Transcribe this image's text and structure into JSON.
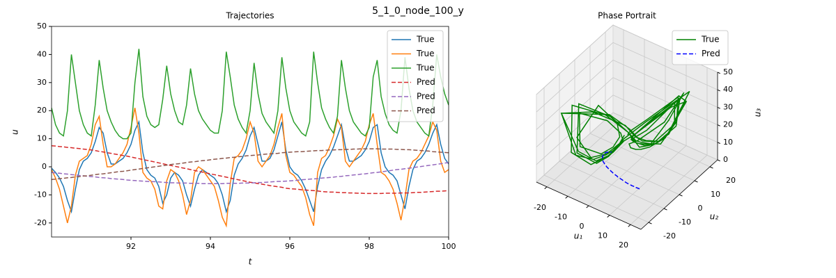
{
  "title": "5_1_0_node_100_y",
  "chart_data": [
    {
      "type": "line",
      "title": "Trajectories",
      "xlabel": "t",
      "ylabel": "u",
      "xlim": [
        90,
        100
      ],
      "ylim": [
        -25,
        50
      ],
      "xticks": [
        92,
        94,
        96,
        98,
        100
      ],
      "yticks": [
        -20,
        -10,
        0,
        10,
        20,
        30,
        40,
        50
      ],
      "legend": "upper right",
      "x": [
        90,
        90.1,
        90.2,
        90.3,
        90.4,
        90.5,
        90.6,
        90.7,
        90.8,
        90.9,
        91,
        91.1,
        91.2,
        91.3,
        91.4,
        91.5,
        91.6,
        91.7,
        91.8,
        91.9,
        92,
        92.1,
        92.2,
        92.3,
        92.4,
        92.5,
        92.6,
        92.7,
        92.8,
        92.9,
        93,
        93.1,
        93.2,
        93.3,
        93.4,
        93.5,
        93.6,
        93.7,
        93.8,
        93.9,
        94,
        94.1,
        94.2,
        94.3,
        94.4,
        94.5,
        94.6,
        94.7,
        94.8,
        94.9,
        95,
        95.1,
        95.2,
        95.3,
        95.4,
        95.5,
        95.6,
        95.7,
        95.8,
        95.9,
        96,
        96.1,
        96.2,
        96.3,
        96.4,
        96.5,
        96.6,
        96.7,
        96.8,
        96.9,
        97,
        97.1,
        97.2,
        97.3,
        97.4,
        97.5,
        97.6,
        97.7,
        97.8,
        97.9,
        98,
        98.1,
        98.2,
        98.3,
        98.4,
        98.5,
        98.6,
        98.7,
        98.8,
        98.9,
        99,
        99.1,
        99.2,
        99.3,
        99.4,
        99.5,
        99.6,
        99.7,
        99.8,
        99.9,
        100
      ],
      "series": [
        {
          "name": "True",
          "color": "#1f77b4",
          "linestyle": "solid",
          "values": [
            -0.5,
            -2,
            -4,
            -7,
            -12,
            -16,
            -8,
            -1,
            2,
            3,
            5,
            9,
            14,
            12,
            5,
            1,
            1,
            2,
            3,
            5,
            8,
            13,
            16,
            5,
            -1,
            -3,
            -4,
            -7,
            -13,
            -10,
            -4,
            -2,
            -3,
            -5,
            -10,
            -14,
            -8,
            -3,
            -1,
            -2,
            -3,
            -4,
            -6,
            -10,
            -16,
            -12,
            -3,
            1,
            3,
            6,
            11,
            14,
            8,
            2,
            2,
            3,
            6,
            11,
            16,
            6,
            0,
            -2,
            -3,
            -5,
            -8,
            -12,
            -16,
            -7,
            -1,
            2,
            4,
            7,
            11,
            15,
            7,
            2,
            2,
            3,
            4,
            6,
            9,
            14,
            15,
            5,
            0,
            -2,
            -3,
            -5,
            -10,
            -15,
            -7,
            -1,
            2,
            3,
            5,
            8,
            12,
            15,
            8,
            3,
            1
          ]
        },
        {
          "name": "True",
          "color": "#ff7f0e",
          "linestyle": "solid",
          "values": [
            -1,
            -4,
            -8,
            -14,
            -20,
            -14,
            -3,
            2,
            3,
            4,
            8,
            15,
            18,
            8,
            0,
            0,
            1,
            3,
            5,
            8,
            14,
            21,
            12,
            -2,
            -4,
            -5,
            -8,
            -14,
            -15,
            -5,
            -1,
            -2,
            -5,
            -10,
            -17,
            -12,
            -2,
            0,
            -1,
            -3,
            -5,
            -7,
            -12,
            -18,
            -21,
            -6,
            3,
            4,
            6,
            10,
            16,
            12,
            2,
            0,
            2,
            4,
            8,
            14,
            19,
            4,
            -2,
            -3,
            -5,
            -7,
            -11,
            -17,
            -21,
            -2,
            3,
            4,
            7,
            11,
            17,
            14,
            2,
            0,
            2,
            4,
            6,
            9,
            15,
            19,
            8,
            -2,
            -3,
            -5,
            -8,
            -13,
            -19,
            -11,
            -1,
            2,
            3,
            5,
            8,
            11,
            16,
            13,
            2,
            -2,
            -1
          ]
        },
        {
          "name": "True",
          "color": "#2ca02c",
          "linestyle": "solid",
          "values": [
            21,
            15,
            12,
            11,
            20,
            40,
            30,
            20,
            15,
            12,
            11,
            22,
            38,
            28,
            20,
            16,
            13,
            11,
            10,
            10,
            12,
            30,
            42,
            25,
            18,
            15,
            14,
            15,
            24,
            36,
            26,
            20,
            16,
            15,
            22,
            35,
            26,
            20,
            17,
            15,
            13,
            12,
            12,
            20,
            41,
            32,
            22,
            17,
            14,
            12,
            20,
            37,
            26,
            19,
            16,
            14,
            12,
            20,
            39,
            28,
            20,
            16,
            14,
            12,
            11,
            16,
            41,
            30,
            21,
            17,
            14,
            12,
            18,
            38,
            28,
            20,
            16,
            14,
            12,
            11,
            14,
            32,
            38,
            25,
            19,
            15,
            13,
            12,
            20,
            39,
            28,
            20,
            16,
            14,
            12,
            11,
            22,
            40,
            32,
            26,
            22
          ]
        },
        {
          "name": "Pred",
          "color": "#d62728",
          "linestyle": "dashed",
          "values": [
            7.5,
            7.4,
            7.2,
            7.1,
            6.9,
            6.8,
            6.6,
            6.5,
            6.3,
            6.2,
            6,
            5.8,
            5.5,
            5.3,
            5,
            4.8,
            4.5,
            4.3,
            4,
            3.8,
            3.5,
            3.2,
            2.9,
            2.6,
            2.3,
            2,
            1.7,
            1.4,
            1.1,
            0.8,
            0.5,
            0.2,
            -0.1,
            -0.4,
            -0.7,
            -1,
            -1.3,
            -1.6,
            -1.9,
            -2.2,
            -2.5,
            -2.8,
            -3.1,
            -3.4,
            -3.7,
            -4,
            -4.3,
            -4.6,
            -4.9,
            -5.2,
            -5.5,
            -5.7,
            -6,
            -6.2,
            -6.4,
            -6.7,
            -6.9,
            -7.1,
            -7.3,
            -7.6,
            -7.8,
            -7.9,
            -8,
            -8.2,
            -8.3,
            -8.4,
            -8.5,
            -8.6,
            -8.8,
            -8.9,
            -9,
            -9,
            -9.1,
            -9.2,
            -9.2,
            -9.3,
            -9.3,
            -9.4,
            -9.4,
            -9.5,
            -9.5,
            -9.5,
            -9.5,
            -9.5,
            -9.4,
            -9.4,
            -9.4,
            -9.4,
            -9.3,
            -9.3,
            -9.3,
            -9.2,
            -9.1,
            -9.1,
            -9,
            -8.9,
            -8.8,
            -8.7,
            -8.7,
            -8.6,
            -8.5
          ]
        },
        {
          "name": "Pred",
          "color": "#9467bd",
          "linestyle": "dashed",
          "values": [
            -2,
            -2.2,
            -2.3,
            -2.5,
            -2.6,
            -2.8,
            -2.9,
            -3.1,
            -3.2,
            -3.4,
            -3.5,
            -3.6,
            -3.8,
            -3.9,
            -4,
            -4.2,
            -4.3,
            -4.4,
            -4.5,
            -4.7,
            -4.8,
            -4.9,
            -5,
            -5.1,
            -5.2,
            -5.3,
            -5.3,
            -5.4,
            -5.5,
            -5.6,
            -5.7,
            -5.7,
            -5.8,
            -5.8,
            -5.8,
            -5.9,
            -5.9,
            -5.9,
            -6,
            -6,
            -6,
            -6,
            -6,
            -6,
            -5.9,
            -5.9,
            -5.9,
            -5.9,
            -5.8,
            -5.8,
            -5.8,
            -5.7,
            -5.6,
            -5.6,
            -5.5,
            -5.4,
            -5.3,
            -5.2,
            -5.2,
            -5.1,
            -5,
            -4.9,
            -4.8,
            -4.6,
            -4.5,
            -4.4,
            -4.3,
            -4.2,
            -4,
            -3.9,
            -3.8,
            -3.7,
            -3.5,
            -3.4,
            -3.2,
            -3.1,
            -2.9,
            -2.8,
            -2.6,
            -2.5,
            -2.3,
            -2.1,
            -2,
            -1.8,
            -1.6,
            -1.4,
            -1.2,
            -1,
            -0.9,
            -0.7,
            -0.5,
            -0.3,
            -0.1,
            0.1,
            0.3,
            0.5,
            0.7,
            0.9,
            1.1,
            1.3,
            1.5
          ]
        },
        {
          "name": "Pred",
          "color": "#8c564b",
          "linestyle": "dashed",
          "values": [
            -4.5,
            -4.4,
            -4.2,
            -4.1,
            -3.9,
            -3.8,
            -3.6,
            -3.5,
            -3.3,
            -3.2,
            -3,
            -2.8,
            -2.6,
            -2.5,
            -2.3,
            -2.1,
            -1.9,
            -1.7,
            -1.6,
            -1.4,
            -1.2,
            -1,
            -0.8,
            -0.6,
            -0.4,
            -0.2,
            0,
            0.2,
            0.4,
            0.6,
            0.8,
            1,
            1.1,
            1.3,
            1.5,
            1.7,
            1.8,
            2,
            2.2,
            2.3,
            2.5,
            2.7,
            2.8,
            3,
            3.1,
            3.3,
            3.4,
            3.6,
            3.7,
            3.9,
            4,
            4.1,
            4.2,
            4.4,
            4.5,
            4.6,
            4.7,
            4.8,
            5,
            5.1,
            5.2,
            5.3,
            5.4,
            5.4,
            5.5,
            5.6,
            5.7,
            5.8,
            5.8,
            5.9,
            6,
            6,
            6.1,
            6.1,
            6.2,
            6.2,
            6.3,
            6.3,
            6.4,
            6.4,
            6.4,
            6.4,
            6.4,
            6.3,
            6.3,
            6.3,
            6.3,
            6.2,
            6.2,
            6.1,
            6.1,
            6,
            5.9,
            5.8,
            5.7,
            5.6,
            5.4,
            5.3,
            5.2,
            5.1,
            5
          ]
        }
      ]
    },
    {
      "type": "line3d",
      "title": "Phase Portrait",
      "xlabel": "u₁",
      "ylabel": "u₂",
      "zlabel": "u₃",
      "xlim": [
        -25,
        25
      ],
      "ylim": [
        -25,
        25
      ],
      "zlim": [
        0,
        50
      ],
      "xticks": [
        -20,
        -10,
        0,
        10,
        20
      ],
      "yticks": [
        -20,
        -10,
        0,
        10,
        20
      ],
      "zticks": [
        0,
        10,
        20,
        30,
        40,
        50
      ],
      "legend": "upper right",
      "series": [
        {
          "name": "True",
          "color": "#008000",
          "linestyle": "solid"
        },
        {
          "name": "Pred",
          "color": "#0000ff",
          "linestyle": "dashed"
        }
      ]
    }
  ]
}
